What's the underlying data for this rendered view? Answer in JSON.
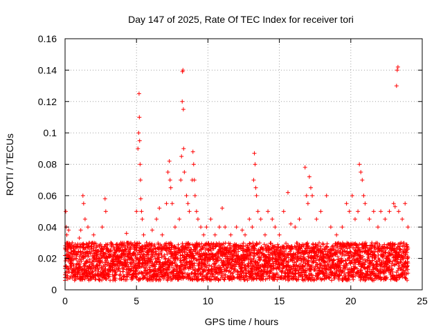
{
  "chart_data": {
    "type": "scatter",
    "title": "Day 147 of 2025, Rate Of TEC Index for receiver tori",
    "xlabel": "GPS time / hours",
    "ylabel": "ROTI / TECUs",
    "xlim": [
      0,
      25
    ],
    "ylim": [
      0,
      0.16
    ],
    "xticks": [
      0,
      5,
      10,
      15,
      20,
      25
    ],
    "xtick_labels": [
      "0",
      "5",
      "10",
      "15",
      "20",
      "25"
    ],
    "yticks": [
      0,
      0.02,
      0.04,
      0.06,
      0.08,
      0.1,
      0.12,
      0.14,
      0.16
    ],
    "ytick_labels": [
      "0",
      "0.02",
      "0.04",
      "0.06",
      "0.08",
      "0.1",
      "0.12",
      "0.14",
      "0.16"
    ],
    "grid": true,
    "marker": "+",
    "color": "#ff0000",
    "series": [
      {
        "name": "ROTI",
        "x": [
          0.05,
          0.08,
          0.12,
          0.2,
          0.25,
          0.3,
          0.35,
          0.5,
          0.6,
          0.75,
          1.0,
          1.1,
          1.25,
          1.3,
          1.4,
          1.6,
          1.9,
          2.0,
          2.3,
          2.6,
          2.8,
          2.85,
          3.2,
          3.6,
          3.9,
          4.1,
          4.3,
          4.6,
          4.8,
          5.0,
          5.1,
          5.15,
          5.18,
          5.2,
          5.22,
          5.25,
          5.28,
          5.3,
          5.35,
          5.4,
          5.5,
          5.7,
          5.9,
          6.1,
          6.4,
          6.6,
          6.8,
          7.1,
          7.2,
          7.3,
          7.35,
          7.4,
          7.5,
          7.7,
          8.0,
          8.1,
          8.15,
          8.2,
          8.22,
          8.25,
          8.28,
          8.3,
          8.35,
          8.5,
          8.6,
          8.7,
          8.9,
          8.95,
          9.0,
          9.05,
          9.1,
          9.2,
          9.3,
          9.5,
          9.7,
          9.9,
          10.2,
          10.5,
          10.8,
          11.0,
          11.2,
          11.6,
          12.0,
          12.4,
          12.6,
          12.9,
          13.1,
          13.2,
          13.25,
          13.3,
          13.35,
          13.4,
          13.5,
          13.7,
          14.0,
          14.2,
          14.5,
          14.7,
          15.0,
          15.3,
          15.6,
          15.8,
          16.1,
          16.4,
          16.8,
          16.9,
          17.0,
          17.1,
          17.2,
          17.3,
          17.6,
          17.9,
          18.3,
          18.6,
          19.0,
          19.4,
          19.7,
          19.9,
          20.1,
          20.3,
          20.5,
          20.6,
          20.7,
          20.8,
          20.9,
          21.0,
          21.3,
          21.6,
          21.9,
          22.1,
          22.4,
          22.7,
          23.0,
          23.1,
          23.2,
          23.25,
          23.3,
          23.35,
          23.6,
          23.8,
          24.0
        ],
        "y": [
          0.05,
          0.04,
          0.035,
          0.03,
          0.038,
          0.028,
          0.022,
          0.03,
          0.025,
          0.02,
          0.033,
          0.038,
          0.06,
          0.055,
          0.045,
          0.04,
          0.03,
          0.035,
          0.028,
          0.04,
          0.058,
          0.05,
          0.03,
          0.025,
          0.03,
          0.028,
          0.036,
          0.03,
          0.028,
          0.05,
          0.09,
          0.1,
          0.125,
          0.11,
          0.095,
          0.08,
          0.07,
          0.058,
          0.05,
          0.045,
          0.035,
          0.03,
          0.025,
          0.038,
          0.045,
          0.052,
          0.035,
          0.055,
          0.075,
          0.082,
          0.07,
          0.065,
          0.055,
          0.04,
          0.045,
          0.07,
          0.085,
          0.12,
          0.139,
          0.14,
          0.115,
          0.09,
          0.075,
          0.06,
          0.055,
          0.05,
          0.07,
          0.088,
          0.08,
          0.07,
          0.06,
          0.05,
          0.045,
          0.04,
          0.035,
          0.04,
          0.045,
          0.035,
          0.04,
          0.052,
          0.04,
          0.035,
          0.04,
          0.038,
          0.035,
          0.045,
          0.04,
          0.07,
          0.087,
          0.08,
          0.065,
          0.06,
          0.05,
          0.045,
          0.035,
          0.05,
          0.045,
          0.04,
          0.035,
          0.05,
          0.062,
          0.042,
          0.04,
          0.045,
          0.078,
          0.06,
          0.055,
          0.072,
          0.065,
          0.06,
          0.045,
          0.05,
          0.06,
          0.04,
          0.035,
          0.04,
          0.055,
          0.05,
          0.06,
          0.045,
          0.05,
          0.08,
          0.075,
          0.07,
          0.06,
          0.055,
          0.045,
          0.05,
          0.04,
          0.05,
          0.045,
          0.05,
          0.055,
          0.053,
          0.13,
          0.14,
          0.142,
          0.05,
          0.045,
          0.055,
          0.04
        ]
      }
    ]
  }
}
